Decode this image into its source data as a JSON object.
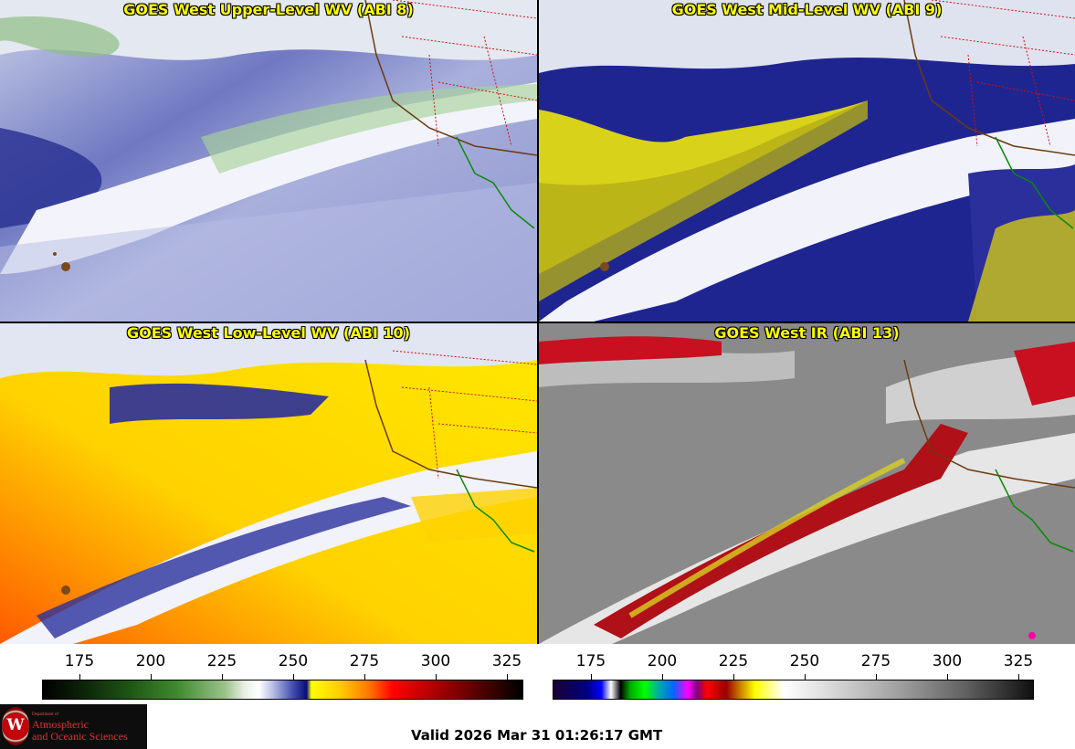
{
  "panels": [
    {
      "title": "GOES West Upper-Level WV (ABI 8)"
    },
    {
      "title": "GOES West Mid-Level WV (ABI 9)"
    },
    {
      "title": "GOES West Low-Level WV (ABI 10)"
    },
    {
      "title": "GOES West IR (ABI 13)"
    }
  ],
  "colorbars": {
    "water_vapor": {
      "ticks": [
        "175",
        "200",
        "225",
        "250",
        "275",
        "300",
        "325"
      ],
      "colors": [
        "#000000",
        "#1f5514",
        "#ffffff",
        "#0a0c7a",
        "#ffff00",
        "#ff0000",
        "#000000"
      ]
    },
    "infrared": {
      "ticks": [
        "175",
        "200",
        "225",
        "250",
        "275",
        "300",
        "325"
      ],
      "colors": [
        "#000080",
        "#00ff00",
        "#ff00ff",
        "#ff0000",
        "#ffff00",
        "#ffffff",
        "#101010"
      ]
    }
  },
  "logo": {
    "department": "Department of",
    "line1": "Atmospheric",
    "line2": "and Oceanic Sciences",
    "seal_letter": "W"
  },
  "valid_time": "Valid 2026 Mar 31 01:26:17 GMT"
}
